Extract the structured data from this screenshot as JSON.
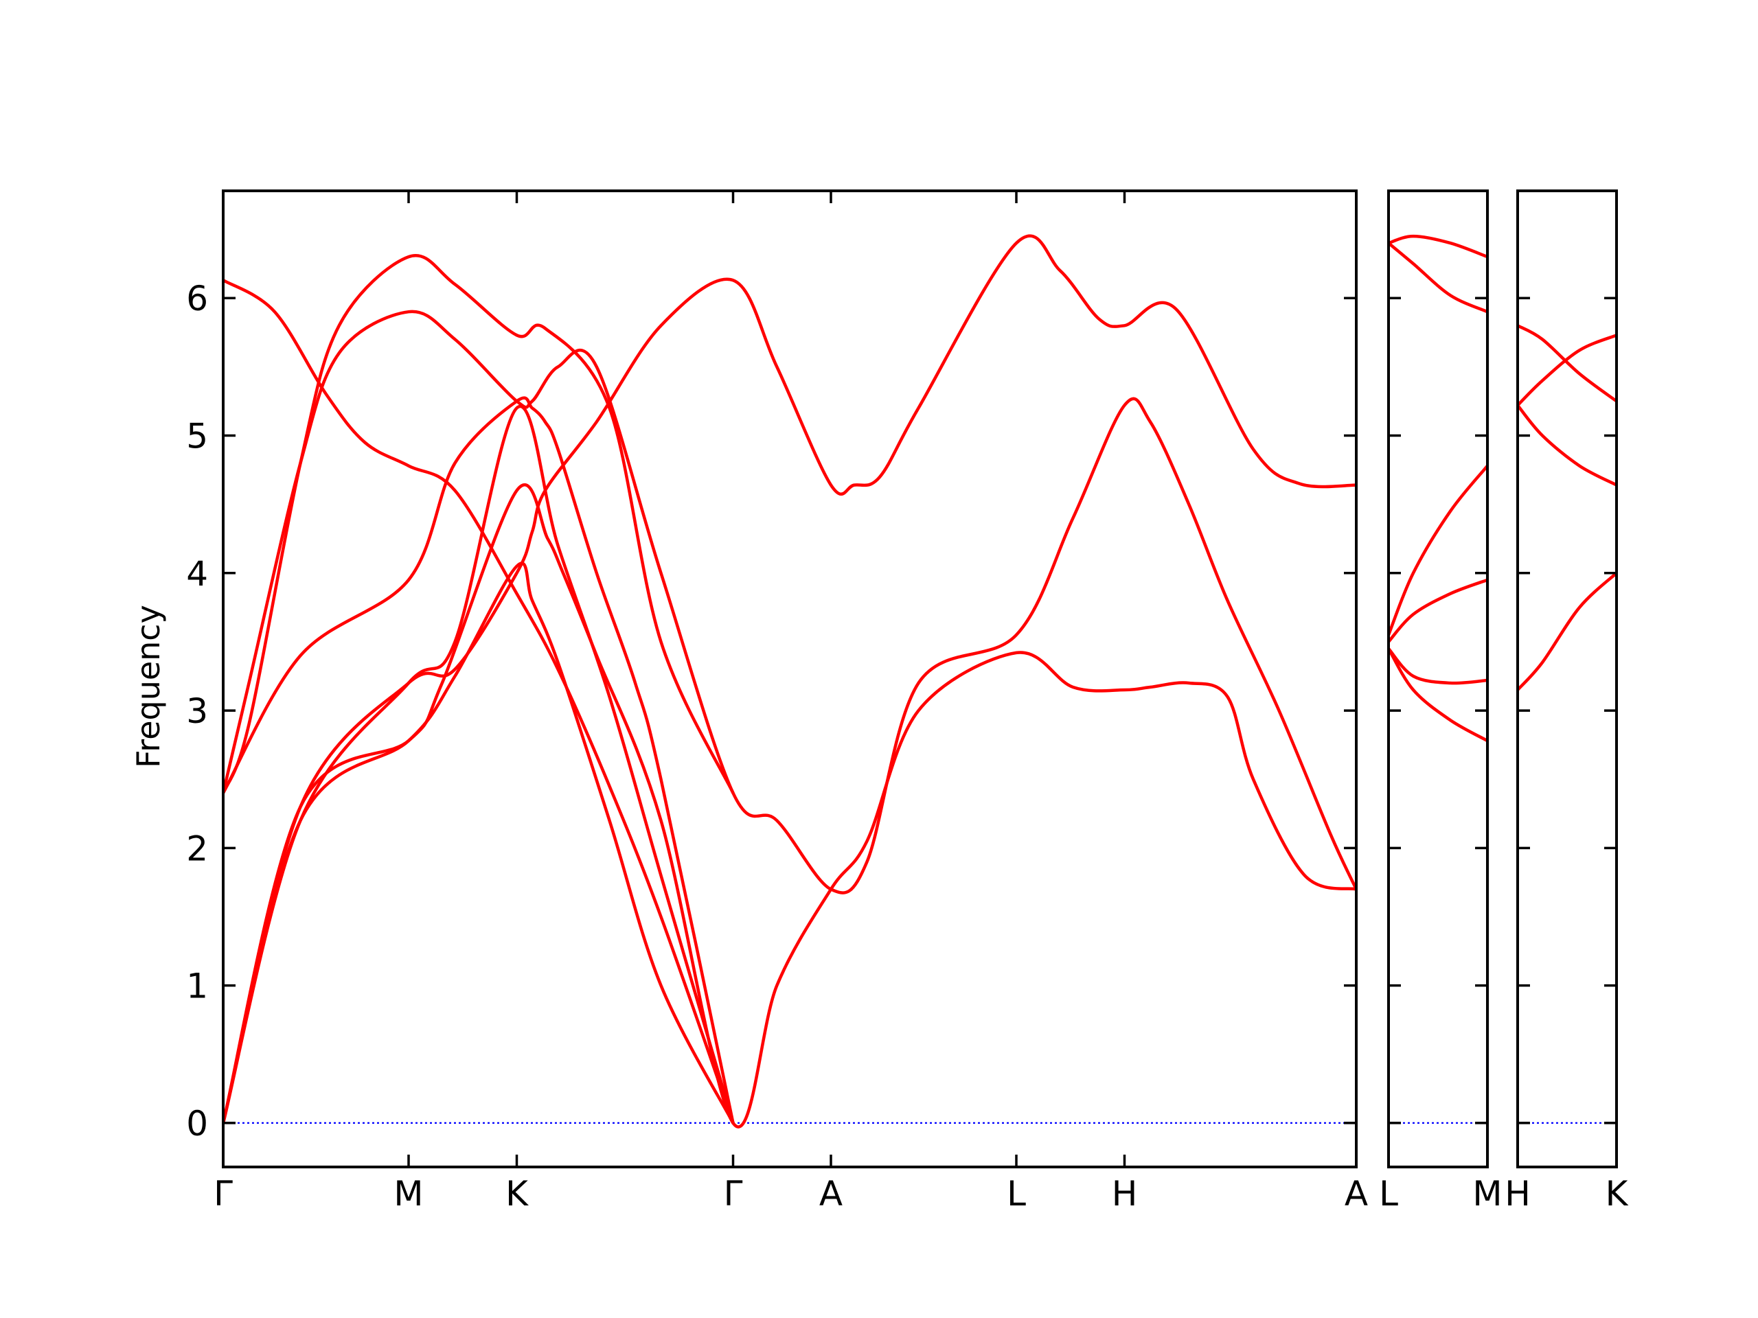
{
  "chart_data": {
    "type": "line",
    "ylabel": "Frequency",
    "ylim": [
      -0.32,
      6.78
    ],
    "yticks": [
      0,
      1,
      2,
      3,
      4,
      5,
      6
    ],
    "colors": {
      "bands": "#ff0000",
      "zero_line": "#0000ff",
      "axes": "#000000"
    },
    "grid": false,
    "panels": [
      {
        "xrange": [
          0,
          4.4
        ],
        "ticks": [
          {
            "x": 0,
            "label": "Γ"
          },
          {
            "x": 0.72,
            "label": "M"
          },
          {
            "x": 1.14,
            "label": "K"
          },
          {
            "x": 1.98,
            "label": "Γ"
          },
          {
            "x": 2.36,
            "label": "A"
          },
          {
            "x": 3.08,
            "label": "L"
          },
          {
            "x": 3.5,
            "label": "H"
          },
          {
            "x": 4.4,
            "label": "A"
          }
        ],
        "series": [
          {
            "x": [
              0,
              0.3,
              0.72,
              0.9,
              1.14,
              1.2,
              1.25,
              1.45,
              1.7,
              1.98,
              2.15,
              2.36,
              2.45,
              2.55,
              2.7,
              3.08,
              3.25,
              3.4,
              3.5,
              3.7,
              4.0,
              4.18,
              4.4
            ],
            "y": [
              0,
              2.3,
              3.2,
              3.3,
              4.0,
              4.3,
              4.6,
              5.1,
              5.8,
              6.13,
              5.5,
              4.64,
              4.64,
              4.7,
              5.2,
              6.4,
              6.2,
              5.85,
              5.8,
              5.92,
              4.9,
              4.65,
              4.64
            ]
          },
          {
            "x": [
              0,
              0.3,
              0.72,
              0.85,
              1.14,
              1.26,
              1.32,
              1.45,
              1.7,
              1.98,
              2.15,
              2.36,
              2.5,
              2.7,
              3.08,
              3.3,
              3.5,
              3.6,
              3.75,
              3.9,
              4.0,
              4.2,
              4.4
            ],
            "y": [
              0,
              2.3,
              2.78,
              3.2,
              4.6,
              4.25,
              4.0,
              3.4,
              2.2,
              0,
              1.0,
              1.7,
              2.05,
              3.0,
              3.42,
              3.17,
              3.15,
              3.17,
              3.2,
              3.1,
              2.5,
              1.8,
              1.7
            ]
          },
          {
            "x": [
              0,
              0.3,
              0.72,
              0.9,
              1.14,
              1.3,
              1.5,
              1.7,
              1.98
            ],
            "y": [
              0,
              2.2,
              3.2,
              3.5,
              5.2,
              4.2,
              3.1,
              1.8,
              0
            ]
          },
          {
            "x": [
              0,
              0.3,
              0.72,
              0.9,
              1.14,
              1.2,
              1.3,
              1.5,
              1.7,
              1.98
            ],
            "y": [
              0,
              2.2,
              2.78,
              3.25,
              4.05,
              3.8,
              3.35,
              2.2,
              1.0,
              0
            ]
          },
          {
            "x": [
              0,
              0.3,
              0.72,
              0.9,
              1.14,
              1.2,
              1.25,
              1.3,
              1.45,
              1.6,
              1.7,
              1.98
            ],
            "y": [
              2.4,
              3.4,
              3.95,
              4.8,
              5.25,
              5.2,
              5.1,
              4.9,
              4.0,
              3.2,
              2.5,
              0
            ]
          },
          {
            "x": [
              0,
              0.1,
              0.3,
              0.45,
              0.72,
              0.9,
              1.14,
              1.2,
              1.3,
              1.45,
              1.7,
              1.98,
              2.15,
              2.36,
              2.5,
              2.7,
              3.08,
              3.3,
              3.5,
              3.6,
              3.75,
              3.9,
              4.1,
              4.3,
              4.4
            ],
            "y": [
              2.4,
              3.2,
              4.8,
              5.6,
              5.9,
              5.7,
              5.25,
              5.25,
              5.5,
              5.5,
              4.0,
              2.4,
              2.2,
              1.7,
              1.9,
              3.2,
              3.55,
              4.4,
              5.22,
              5.1,
              4.5,
              3.8,
              3.0,
              2.1,
              1.7
            ]
          },
          {
            "x": [
              0,
              0.1,
              0.3,
              0.45,
              0.72,
              0.9,
              1.14,
              1.25,
              1.5,
              1.7,
              1.98
            ],
            "y": [
              2.4,
              2.9,
              4.8,
              5.8,
              6.3,
              6.1,
              5.73,
              5.78,
              5.2,
              3.5,
              2.4
            ]
          },
          {
            "x": [
              0,
              0.2,
              0.4,
              0.55,
              0.72,
              0.9,
              1.14,
              1.3,
              1.5,
              1.7,
              1.98
            ],
            "y": [
              6.13,
              5.9,
              5.3,
              4.95,
              4.78,
              4.6,
              3.85,
              3.3,
              2.45,
              1.5,
              0
            ]
          }
        ]
      },
      {
        "xrange": [
          0,
          0.4
        ],
        "ticks": [
          {
            "x": 0,
            "label": "L"
          },
          {
            "x": 0.4,
            "label": "M"
          }
        ],
        "series": [
          {
            "x": [
              0,
              0.1,
              0.25,
              0.4
            ],
            "y": [
              6.4,
              6.45,
              6.4,
              6.3
            ]
          },
          {
            "x": [
              0,
              0.1,
              0.25,
              0.4
            ],
            "y": [
              6.4,
              6.25,
              6.02,
              5.9
            ]
          },
          {
            "x": [
              0,
              0.1,
              0.25,
              0.4
            ],
            "y": [
              3.55,
              4.0,
              4.45,
              4.78
            ]
          },
          {
            "x": [
              0,
              0.1,
              0.25,
              0.4
            ],
            "y": [
              3.5,
              3.7,
              3.85,
              3.95
            ]
          },
          {
            "x": [
              0,
              0.1,
              0.25,
              0.4
            ],
            "y": [
              3.45,
              3.25,
              3.2,
              3.22
            ]
          },
          {
            "x": [
              0,
              0.1,
              0.25,
              0.4
            ],
            "y": [
              3.45,
              3.15,
              2.93,
              2.78
            ]
          }
        ]
      },
      {
        "xrange": [
          0,
          0.4
        ],
        "ticks": [
          {
            "x": 0,
            "label": "H"
          },
          {
            "x": 0.4,
            "label": "K"
          }
        ],
        "series": [
          {
            "x": [
              0,
              0.1,
              0.25,
              0.4
            ],
            "y": [
              5.8,
              5.7,
              5.45,
              5.25
            ]
          },
          {
            "x": [
              0,
              0.1,
              0.25,
              0.4
            ],
            "y": [
              5.22,
              5.4,
              5.62,
              5.73
            ]
          },
          {
            "x": [
              0,
              0.1,
              0.25,
              0.4
            ],
            "y": [
              5.22,
              5.0,
              4.78,
              4.64
            ]
          },
          {
            "x": [
              0,
              0.1,
              0.25,
              0.4
            ],
            "y": [
              3.15,
              3.35,
              3.75,
              4.0
            ]
          }
        ]
      }
    ]
  }
}
